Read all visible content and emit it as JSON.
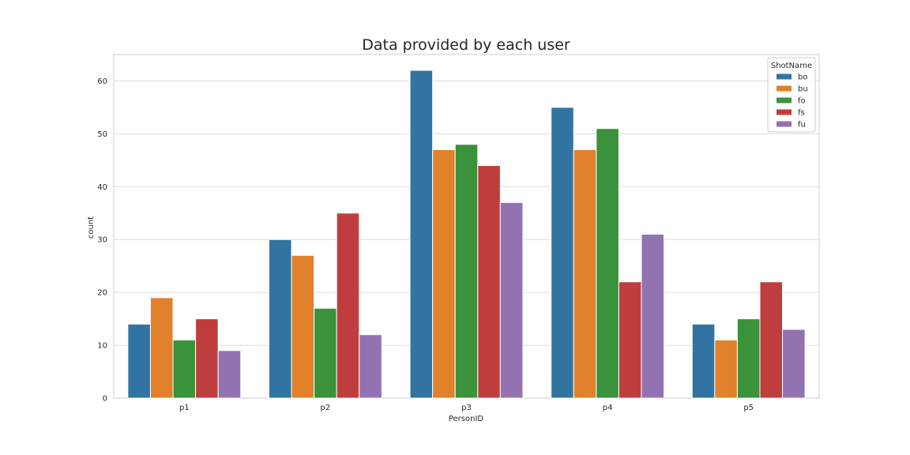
{
  "chart_data": {
    "type": "bar",
    "title": "Data provided by each user",
    "xlabel": "PersonID",
    "ylabel": "count",
    "categories": [
      "p1",
      "p2",
      "p3",
      "p4",
      "p5"
    ],
    "series": [
      {
        "name": "bo",
        "values": [
          14,
          30,
          62,
          55,
          14
        ],
        "color": "#3274a1"
      },
      {
        "name": "bu",
        "values": [
          19,
          27,
          47,
          47,
          11
        ],
        "color": "#e1812c"
      },
      {
        "name": "fo",
        "values": [
          11,
          17,
          48,
          51,
          15
        ],
        "color": "#3a923a"
      },
      {
        "name": "fs",
        "values": [
          15,
          35,
          44,
          22,
          22
        ],
        "color": "#c03d3e"
      },
      {
        "name": "fu",
        "values": [
          9,
          12,
          37,
          31,
          13
        ],
        "color": "#9372b2"
      }
    ],
    "ylim": [
      0,
      65
    ],
    "yticks": [
      0,
      10,
      20,
      30,
      40,
      50,
      60
    ],
    "grid": true,
    "legend": {
      "title": "ShotName",
      "position": "top-right"
    }
  }
}
